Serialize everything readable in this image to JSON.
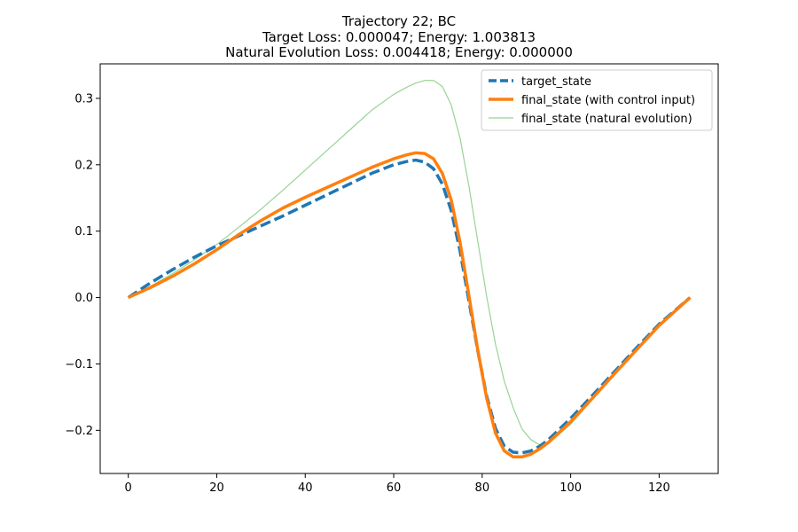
{
  "chart_data": {
    "type": "line",
    "title_lines": [
      "Trajectory 22; BC",
      "Target Loss: 0.000047; Energy: 1.003813",
      "Natural Evolution Loss: 0.004418; Energy: 0.000000"
    ],
    "xlabel": "",
    "ylabel": "",
    "xlim": [
      -6.35,
      133.35
    ],
    "ylim": [
      -0.265,
      0.352
    ],
    "xticks": [
      0,
      20,
      40,
      60,
      80,
      100,
      120
    ],
    "xtick_labels": [
      "0",
      "20",
      "40",
      "60",
      "80",
      "100",
      "120"
    ],
    "yticks": [
      -0.2,
      -0.1,
      0.0,
      0.1,
      0.2,
      0.3
    ],
    "ytick_labels": [
      "−0.2",
      "−0.1",
      "0.0",
      "0.1",
      "0.2",
      "0.3"
    ],
    "grid": false,
    "legend_position": "upper right",
    "series": [
      {
        "name": "target_state",
        "color": "#1f77b4",
        "style": "dashed",
        "x": [
          0,
          5,
          10,
          15,
          20,
          25,
          30,
          35,
          40,
          45,
          50,
          55,
          60,
          63,
          65,
          67,
          69,
          71,
          73,
          75,
          77,
          79,
          81,
          83,
          85,
          87,
          89,
          91,
          93,
          95,
          100,
          105,
          110,
          115,
          120,
          127
        ],
        "y": [
          0.0,
          0.022,
          0.042,
          0.061,
          0.078,
          0.093,
          0.108,
          0.123,
          0.139,
          0.155,
          0.171,
          0.187,
          0.2,
          0.205,
          0.207,
          0.204,
          0.194,
          0.171,
          0.131,
          0.07,
          -0.005,
          -0.08,
          -0.148,
          -0.197,
          -0.224,
          -0.233,
          -0.234,
          -0.231,
          -0.224,
          -0.214,
          -0.182,
          -0.147,
          -0.111,
          -0.075,
          -0.04,
          0.0
        ]
      },
      {
        "name": "final_state (with control input)",
        "color": "#ff7f0e",
        "style": "solid-thick",
        "x": [
          0,
          5,
          10,
          15,
          20,
          25,
          30,
          35,
          40,
          45,
          50,
          55,
          60,
          63,
          65,
          67,
          69,
          71,
          73,
          75,
          77,
          79,
          81,
          83,
          85,
          87,
          89,
          91,
          93,
          95,
          100,
          105,
          110,
          115,
          120,
          127
        ],
        "y": [
          0.0,
          0.015,
          0.032,
          0.051,
          0.072,
          0.095,
          0.116,
          0.135,
          0.151,
          0.166,
          0.181,
          0.196,
          0.209,
          0.215,
          0.218,
          0.217,
          0.209,
          0.187,
          0.147,
          0.083,
          0.003,
          -0.079,
          -0.151,
          -0.204,
          -0.231,
          -0.24,
          -0.24,
          -0.236,
          -0.228,
          -0.218,
          -0.187,
          -0.151,
          -0.114,
          -0.078,
          -0.042,
          0.0
        ]
      },
      {
        "name": "final_state (natural evolution)",
        "color": "#98d494",
        "style": "solid-thin",
        "x": [
          0,
          5,
          10,
          15,
          20,
          25,
          30,
          35,
          40,
          45,
          50,
          55,
          60,
          63,
          65,
          67,
          69,
          71,
          73,
          75,
          77,
          79,
          81,
          83,
          85,
          87,
          89,
          91,
          93,
          95,
          100,
          105,
          110,
          115,
          120,
          127
        ],
        "y": [
          0.0,
          0.017,
          0.036,
          0.057,
          0.08,
          0.106,
          0.133,
          0.162,
          0.192,
          0.222,
          0.252,
          0.282,
          0.306,
          0.317,
          0.323,
          0.327,
          0.327,
          0.318,
          0.29,
          0.24,
          0.168,
          0.085,
          0.002,
          -0.07,
          -0.126,
          -0.166,
          -0.198,
          -0.214,
          -0.222,
          -0.22,
          -0.191,
          -0.153,
          -0.115,
          -0.078,
          -0.042,
          0.0
        ]
      }
    ]
  }
}
